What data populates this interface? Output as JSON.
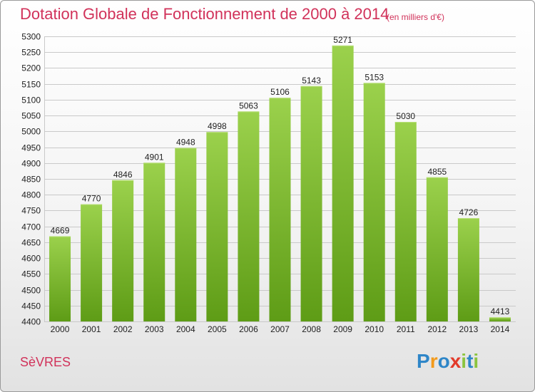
{
  "header": {
    "title": "Dotation Globale de Fonctionnement de 2000 à 2014",
    "subtitle": "(en milliers d'€)"
  },
  "footer": {
    "city": "SèVRES",
    "logo": {
      "text": "Proxiti",
      "letter_colors": [
        "#2e86c8",
        "#f29a1b",
        "#2e86c8",
        "#e23a2a",
        "#8bc43f",
        "#2e86c8",
        "#8bc43f"
      ]
    }
  },
  "colors": {
    "accent": "#d1325a",
    "bar_top": "#9bd14c",
    "bar_bottom": "#5e9c16",
    "grid": "#c9c9c9",
    "axis_text": "#222222"
  },
  "chart_data": {
    "type": "bar",
    "title": "Dotation Globale de Fonctionnement de 2000 à 2014",
    "subtitle": "(en milliers d'€)",
    "xlabel": "",
    "ylabel": "",
    "categories": [
      "2000",
      "2001",
      "2002",
      "2003",
      "2004",
      "2005",
      "2006",
      "2007",
      "2008",
      "2009",
      "2010",
      "2011",
      "2012",
      "2013",
      "2014"
    ],
    "values": [
      4669,
      4770,
      4846,
      4901,
      4948,
      4998,
      5063,
      5106,
      5143,
      5271,
      5153,
      5030,
      4855,
      4726,
      4413
    ],
    "ylim": [
      4400,
      5300
    ],
    "ytick_step": 50,
    "grid": true,
    "data_labels": true
  }
}
